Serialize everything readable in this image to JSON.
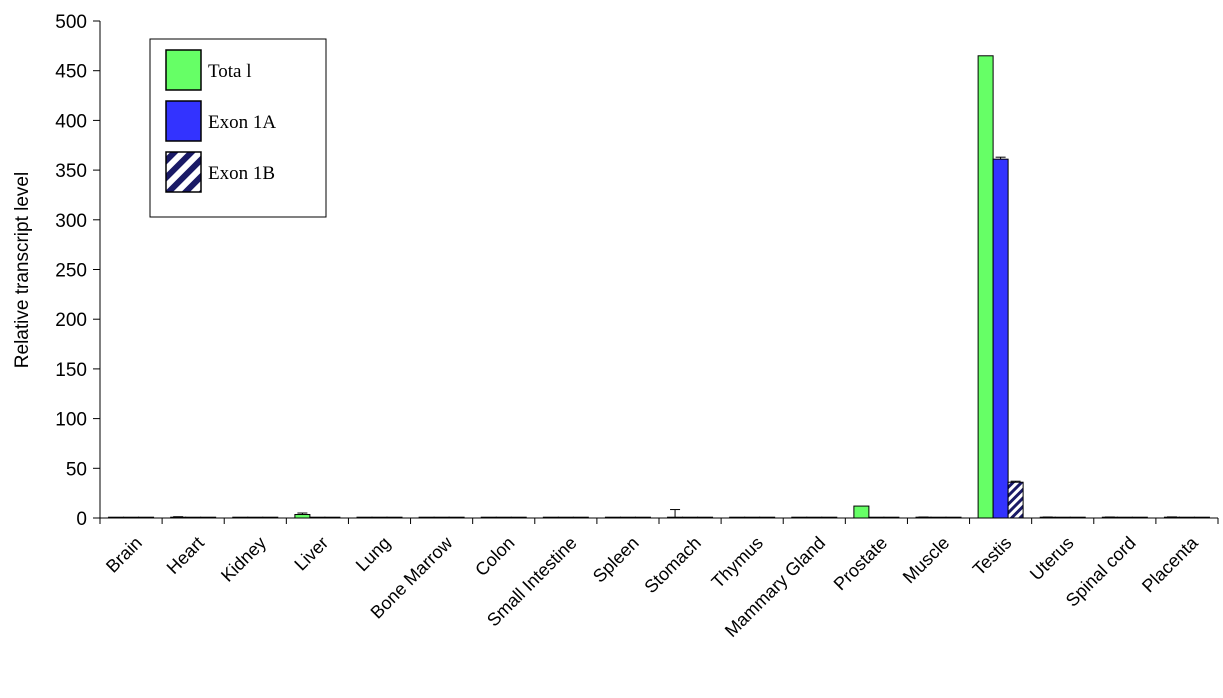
{
  "chart_data": {
    "type": "bar",
    "title": "",
    "xlabel": "",
    "ylabel": "Relative transcript level",
    "ylim": [
      0,
      500
    ],
    "yticks": [
      0,
      50,
      100,
      150,
      200,
      250,
      300,
      350,
      400,
      450,
      500
    ],
    "grid": false,
    "legend_position": "top-left",
    "categories": [
      "Brain",
      "Heart",
      "Kidney",
      "Liver",
      "Lung",
      "Bone Marrow",
      "Colon",
      "Small Intestine",
      "Spleen",
      "Stomach",
      "Thymus",
      "Mammary Gland",
      "Prostate",
      "Muscle",
      "Testis",
      "Uterus",
      "Spinal cord",
      "Placenta"
    ],
    "series": [
      {
        "name": "Total",
        "legend_label": "Tota l",
        "color": "#66ff66",
        "pattern": "solid",
        "values": [
          0.3,
          0.8,
          0.3,
          3.5,
          0.3,
          0.3,
          0.3,
          0.3,
          0.3,
          0.5,
          0.3,
          0.3,
          12,
          0.6,
          465,
          0.6,
          0.6,
          0.6
        ],
        "errors": [
          0,
          0.5,
          0,
          1.5,
          0,
          0,
          0,
          0,
          0,
          8,
          0,
          0,
          0,
          0.4,
          0,
          0.4,
          0.4,
          0.5
        ]
      },
      {
        "name": "Exon 1A",
        "legend_label": "Exon 1A",
        "color": "#3333ff",
        "pattern": "solid",
        "values": [
          0.2,
          0.3,
          0.2,
          0.5,
          0.2,
          0.2,
          0.2,
          0.2,
          0.2,
          0.2,
          0.2,
          0.2,
          0.5,
          0.2,
          361,
          0.3,
          0.3,
          0.3
        ],
        "errors": [
          0,
          0,
          0,
          0,
          0,
          0,
          0,
          0,
          0,
          0,
          0,
          0,
          0,
          0,
          2,
          0,
          0,
          0
        ]
      },
      {
        "name": "Exon 1B",
        "legend_label": "Exon 1B",
        "color": "#1a1a66",
        "pattern": "hatch",
        "values": [
          0.1,
          0.1,
          0.1,
          0.1,
          0.1,
          0.1,
          0.1,
          0.1,
          0.1,
          0.1,
          0.1,
          0.1,
          0.1,
          0.1,
          36,
          0.1,
          0.1,
          0.1
        ],
        "errors": [
          0,
          0,
          0,
          0,
          0,
          0,
          0,
          0,
          0,
          0,
          0,
          0,
          0,
          0,
          1,
          0,
          0,
          0
        ]
      }
    ]
  }
}
